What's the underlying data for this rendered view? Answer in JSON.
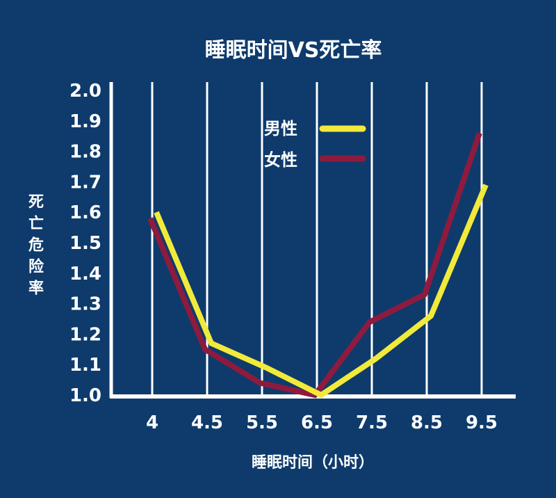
{
  "chart_data": {
    "type": "line",
    "title": "睡眠时间VS死亡率",
    "xlabel": "睡眠时间（小时）",
    "ylabel": "死亡危险率",
    "categories": [
      "4",
      "4.5",
      "5.5",
      "6.5",
      "7.5",
      "8.5",
      "9.5"
    ],
    "ylim": [
      1.0,
      2.0
    ],
    "yticks": [
      "1.0",
      "1.1",
      "1.2",
      "1.3",
      "1.4",
      "1.5",
      "1.6",
      "1.7",
      "1.8",
      "1.9",
      "2.0"
    ],
    "grid": "vertical lines",
    "legend_placement": "top-center",
    "series": [
      {
        "name": "男性",
        "color": "#f2ea3a",
        "values": [
          1.6,
          1.17,
          1.09,
          1.0,
          1.12,
          1.26,
          1.69
        ]
      },
      {
        "name": "女性",
        "color": "#8e1b3e",
        "values": [
          1.58,
          1.15,
          1.04,
          1.0,
          1.24,
          1.33,
          1.86
        ]
      }
    ],
    "background": "#0e3b6c"
  }
}
